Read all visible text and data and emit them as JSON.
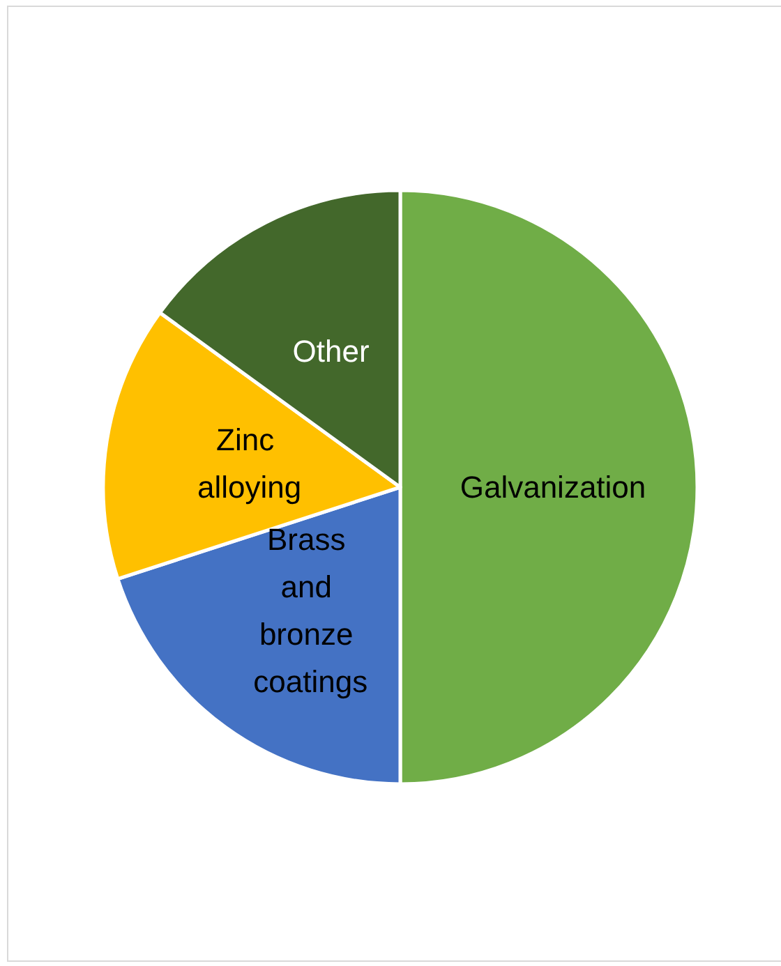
{
  "chart_data": {
    "type": "pie",
    "categories": [
      "Galvanization",
      "Brass and bronze coatings",
      "Zinc alloying",
      "Other"
    ],
    "values": [
      50,
      20,
      15,
      15
    ],
    "colors": [
      "#70ad47",
      "#4472c4",
      "#ffc000",
      "#43682b"
    ],
    "legend": false
  }
}
